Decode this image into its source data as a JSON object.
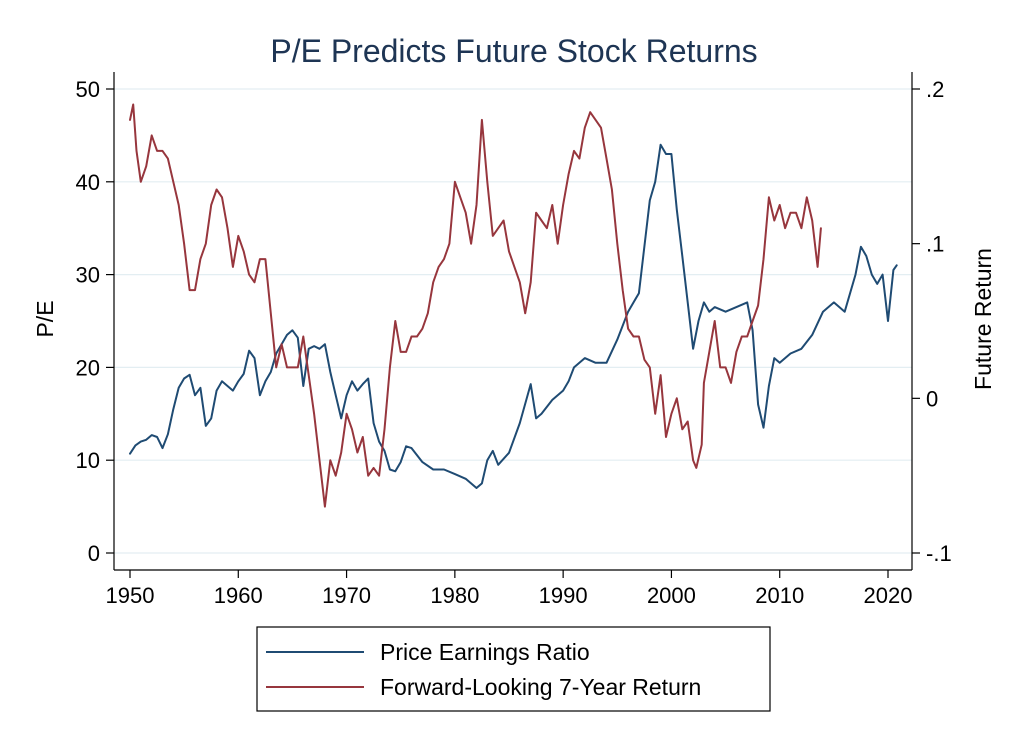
{
  "chart_data": {
    "type": "line",
    "title": "P/E Predicts Future Stock Returns",
    "xlabel": "",
    "ylabel": "P/E",
    "y2label": "Future Return",
    "xlim": [
      1950,
      2020
    ],
    "ylim": [
      0,
      50
    ],
    "y2lim": [
      -0.1,
      0.2
    ],
    "xticks": [
      1950,
      1960,
      1970,
      1980,
      1990,
      2000,
      2010,
      2020
    ],
    "yticks": [
      0,
      10,
      20,
      30,
      40,
      50
    ],
    "y2ticks": [
      -0.1,
      0,
      0.1,
      0.2
    ],
    "y2tick_labels": [
      "-.1",
      "0",
      ".1",
      ".2"
    ],
    "grid": true,
    "legend_position": "bottom",
    "colors": {
      "pe": "#1f4b73",
      "ret": "#97363d",
      "title": "#1e3554",
      "grid": "#e3eef2"
    },
    "series": [
      {
        "name": "Price Earnings Ratio",
        "axis": "left",
        "x": [
          1950.0,
          1950.5,
          1951.0,
          1951.5,
          1952.0,
          1952.5,
          1953.0,
          1953.5,
          1954.0,
          1954.5,
          1955.0,
          1955.5,
          1956.0,
          1956.5,
          1957.0,
          1957.5,
          1958.0,
          1958.5,
          1959.0,
          1959.5,
          1960.0,
          1960.5,
          1961.0,
          1961.5,
          1962.0,
          1962.5,
          1963.0,
          1963.5,
          1964.0,
          1964.5,
          1965.0,
          1965.5,
          1966.0,
          1966.5,
          1967.0,
          1967.5,
          1968.0,
          1968.5,
          1969.0,
          1969.5,
          1970.0,
          1970.5,
          1971.0,
          1971.5,
          1972.0,
          1972.5,
          1973.0,
          1973.5,
          1974.0,
          1974.5,
          1975.0,
          1975.5,
          1976.0,
          1977.0,
          1978.0,
          1979.0,
          1980.0,
          1981.0,
          1982.0,
          1982.5,
          1983.0,
          1983.5,
          1984.0,
          1985.0,
          1986.0,
          1987.0,
          1987.5,
          1988.0,
          1989.0,
          1990.0,
          1990.5,
          1991.0,
          1992.0,
          1993.0,
          1994.0,
          1995.0,
          1996.0,
          1997.0,
          1998.0,
          1998.5,
          1999.0,
          1999.5,
          2000.0,
          2000.5,
          2001.0,
          2001.5,
          2002.0,
          2002.5,
          2003.0,
          2003.5,
          2004.0,
          2005.0,
          2006.0,
          2007.0,
          2007.5,
          2008.0,
          2008.5,
          2009.0,
          2009.5,
          2010.0,
          2011.0,
          2012.0,
          2013.0,
          2014.0,
          2015.0,
          2016.0,
          2017.0,
          2017.5,
          2018.0,
          2018.5,
          2019.0,
          2019.5,
          2020.0,
          2020.5,
          2020.8
        ],
        "values": [
          10.7,
          11.6,
          12.0,
          12.2,
          12.7,
          12.5,
          11.3,
          12.8,
          15.5,
          17.8,
          18.8,
          19.2,
          17.0,
          17.8,
          13.7,
          14.5,
          17.5,
          18.5,
          18.0,
          17.5,
          18.5,
          19.3,
          21.8,
          21.0,
          17.0,
          18.5,
          19.5,
          21.5,
          22.5,
          23.5,
          24.0,
          23.2,
          18.0,
          22.0,
          22.3,
          22.0,
          22.5,
          19.5,
          17.0,
          14.5,
          17.0,
          18.5,
          17.5,
          18.2,
          18.8,
          14.0,
          12.0,
          11.0,
          9.0,
          8.8,
          9.8,
          11.5,
          11.3,
          9.8,
          9.0,
          9.0,
          8.5,
          8.0,
          7.0,
          7.5,
          10.0,
          11.0,
          9.5,
          10.8,
          14.0,
          18.2,
          14.5,
          15.0,
          16.5,
          17.5,
          18.5,
          20.0,
          21.0,
          20.5,
          20.5,
          23.0,
          26.0,
          28.0,
          38.0,
          40.0,
          44.0,
          43.0,
          43.0,
          37.0,
          32.0,
          27.0,
          22.0,
          25.0,
          27.0,
          26.0,
          26.5,
          26.0,
          26.5,
          27.0,
          24.0,
          16.0,
          13.5,
          18.0,
          21.0,
          20.5,
          21.5,
          22.0,
          23.5,
          26.0,
          27.0,
          26.0,
          30.0,
          33.0,
          32.0,
          30.0,
          29.0,
          30.0,
          25.0,
          30.5,
          31.0
        ]
      },
      {
        "name": "Forward-Looking 7-Year Return",
        "axis": "right",
        "x": [
          1950.0,
          1950.3,
          1950.6,
          1951.0,
          1951.5,
          1952.0,
          1952.5,
          1953.0,
          1953.5,
          1954.0,
          1954.5,
          1955.0,
          1955.5,
          1956.0,
          1956.5,
          1957.0,
          1957.5,
          1958.0,
          1958.5,
          1959.0,
          1959.5,
          1960.0,
          1960.5,
          1961.0,
          1961.5,
          1962.0,
          1962.5,
          1963.0,
          1963.5,
          1964.0,
          1964.5,
          1965.0,
          1965.5,
          1966.0,
          1966.5,
          1967.0,
          1967.5,
          1968.0,
          1968.5,
          1969.0,
          1969.5,
          1970.0,
          1970.5,
          1971.0,
          1971.5,
          1972.0,
          1972.5,
          1973.0,
          1973.5,
          1974.0,
          1974.5,
          1975.0,
          1975.5,
          1976.0,
          1976.5,
          1977.0,
          1977.5,
          1978.0,
          1978.5,
          1979.0,
          1979.5,
          1980.0,
          1980.5,
          1981.0,
          1981.5,
          1982.0,
          1982.5,
          1983.0,
          1983.5,
          1984.0,
          1984.5,
          1985.0,
          1985.5,
          1986.0,
          1986.5,
          1987.0,
          1987.5,
          1988.0,
          1988.5,
          1989.0,
          1989.5,
          1990.0,
          1990.5,
          1991.0,
          1991.5,
          1992.0,
          1992.5,
          1993.0,
          1993.5,
          1994.0,
          1994.5,
          1995.0,
          1995.5,
          1996.0,
          1996.5,
          1997.0,
          1997.5,
          1998.0,
          1998.5,
          1999.0,
          1999.5,
          2000.0,
          2000.5,
          2001.0,
          2001.5,
          2002.0,
          2002.3,
          2002.8,
          2003.0,
          2003.5,
          2004.0,
          2004.5,
          2005.0,
          2005.5,
          2006.0,
          2006.5,
          2007.0,
          2007.5,
          2008.0,
          2008.5,
          2009.0,
          2009.5,
          2010.0,
          2010.5,
          2011.0,
          2011.5,
          2012.0,
          2012.5,
          2013.0,
          2013.5,
          2013.8
        ],
        "values": [
          0.18,
          0.19,
          0.16,
          0.14,
          0.15,
          0.17,
          0.16,
          0.16,
          0.155,
          0.14,
          0.125,
          0.1,
          0.07,
          0.07,
          0.09,
          0.1,
          0.125,
          0.135,
          0.13,
          0.11,
          0.085,
          0.105,
          0.095,
          0.08,
          0.075,
          0.09,
          0.09,
          0.055,
          0.02,
          0.035,
          0.02,
          0.02,
          0.02,
          0.04,
          0.015,
          -0.01,
          -0.04,
          -0.07,
          -0.04,
          -0.05,
          -0.035,
          -0.01,
          -0.02,
          -0.035,
          -0.025,
          -0.05,
          -0.045,
          -0.05,
          -0.02,
          0.02,
          0.05,
          0.03,
          0.03,
          0.04,
          0.04,
          0.045,
          0.055,
          0.075,
          0.085,
          0.09,
          0.1,
          0.14,
          0.13,
          0.12,
          0.1,
          0.125,
          0.18,
          0.14,
          0.105,
          0.11,
          0.115,
          0.095,
          0.085,
          0.075,
          0.055,
          0.075,
          0.12,
          0.115,
          0.11,
          0.125,
          0.1,
          0.125,
          0.145,
          0.16,
          0.155,
          0.175,
          0.185,
          0.18,
          0.175,
          0.155,
          0.135,
          0.1,
          0.07,
          0.045,
          0.04,
          0.04,
          0.025,
          0.02,
          -0.01,
          0.015,
          -0.025,
          -0.01,
          0.0,
          -0.02,
          -0.015,
          -0.04,
          -0.045,
          -0.03,
          0.01,
          0.03,
          0.05,
          0.02,
          0.02,
          0.01,
          0.03,
          0.04,
          0.04,
          0.05,
          0.06,
          0.09,
          0.13,
          0.115,
          0.125,
          0.11,
          0.12,
          0.12,
          0.11,
          0.13,
          0.115,
          0.085,
          0.11
        ]
      }
    ]
  }
}
